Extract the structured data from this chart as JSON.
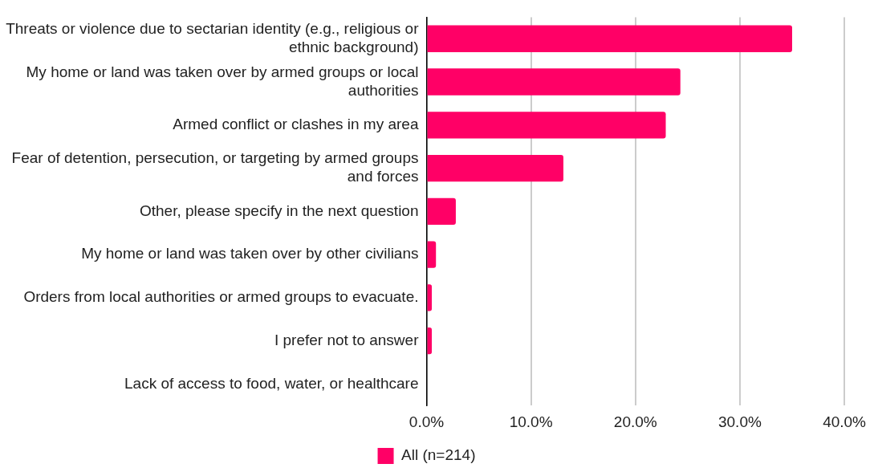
{
  "chart_data": {
    "type": "bar",
    "orientation": "horizontal",
    "categories": [
      "Threats or violence due to sectarian identity (e.g., religious or ethnic background)",
      "My home or land was taken over by armed groups or local authorities",
      "Armed conflict or clashes in my area",
      "Fear of detention, persecution, or targeting by armed groups and forces",
      "Other, please specify in the next question",
      "My home or land was taken over by other civilians",
      "Orders from local authorities or armed groups to evacuate.",
      "I prefer not to answer",
      "Lack of access to food, water, or healthcare"
    ],
    "series": [
      {
        "name": "All (n=214)",
        "color": "#ff0066",
        "values": [
          35.0,
          24.3,
          22.9,
          13.1,
          2.8,
          0.9,
          0.5,
          0.5,
          0
        ]
      }
    ],
    "xlim": [
      0,
      40
    ],
    "xticks": [
      {
        "value": 0,
        "label": "0.0%"
      },
      {
        "value": 10,
        "label": "10.0%"
      },
      {
        "value": 20,
        "label": "20.0%"
      },
      {
        "value": 30,
        "label": "30.0%"
      },
      {
        "value": 40,
        "label": "40.0%"
      }
    ],
    "grid": "x",
    "legend": "bottom"
  }
}
